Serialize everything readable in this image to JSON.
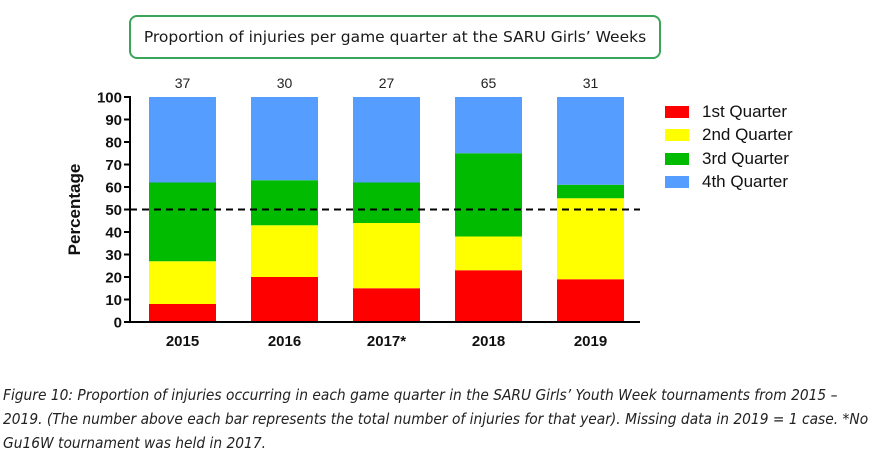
{
  "chart_data": {
    "type": "bar",
    "stacked": true,
    "title": "Proportion of injuries per game quarter at the SARU Girls’ Weeks",
    "xlabel": "",
    "ylabel": "Percentage",
    "ylim": [
      0,
      100
    ],
    "yticks": [
      0,
      10,
      20,
      30,
      40,
      50,
      60,
      70,
      80,
      90,
      100
    ],
    "categories": [
      "2015",
      "2016",
      "2017*",
      "2018",
      "2019"
    ],
    "totals": [
      "37",
      "30",
      "27",
      "65",
      "31"
    ],
    "reference_line": {
      "y": 50,
      "style": "dashed"
    },
    "legend_position": "right",
    "series": [
      {
        "name": "1st Quarter",
        "color": "#ff0000",
        "values": [
          8,
          20,
          15,
          23,
          19
        ]
      },
      {
        "name": "2nd Quarter",
        "color": "#ffff00",
        "values": [
          19,
          23,
          29,
          15,
          36
        ]
      },
      {
        "name": "3rd Quarter",
        "color": "#00bb00",
        "values": [
          35,
          20,
          18,
          37,
          6
        ]
      },
      {
        "name": "4th Quarter",
        "color": "#559dff",
        "values": [
          38,
          37,
          38,
          25,
          39
        ]
      }
    ]
  },
  "caption": {
    "label": "Figure 10:",
    "text": " Proportion of injuries occurring in each game quarter in the SARU Girls’ Youth Week tournaments from 2015 – 2019. (The number above each bar represents the total number of injuries for that year). Missing data in 2019 = 1 case. *No Gu16W tournament was held in 2017."
  }
}
